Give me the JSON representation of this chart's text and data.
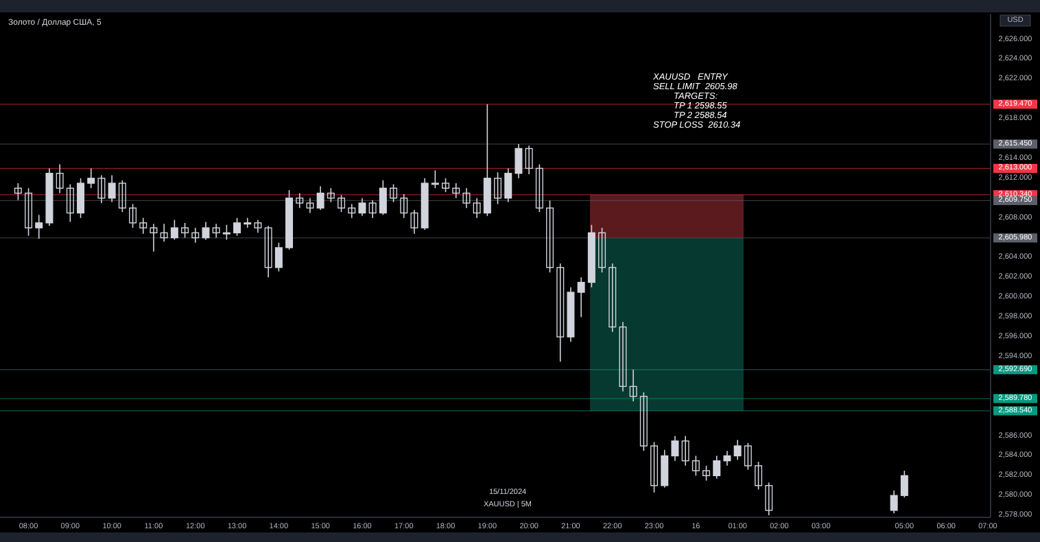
{
  "chart_data": {
    "type": "candlestick",
    "title": "Золото / Доллар США, 5",
    "ylabel": "USD",
    "color": "#d1d4dc",
    "x": [
      "2024-11-15T07:45",
      "2024-11-15T08:00",
      "2024-11-15T08:15",
      "2024-11-15T08:30",
      "2024-11-15T08:45",
      "2024-11-15T09:00",
      "2024-11-15T09:15",
      "2024-11-15T09:30",
      "2024-11-15T09:45",
      "2024-11-15T10:00",
      "2024-11-15T10:15",
      "2024-11-15T10:30",
      "2024-11-15T10:45",
      "2024-11-15T11:00",
      "2024-11-15T11:15",
      "2024-11-15T11:30",
      "2024-11-15T11:45",
      "2024-11-15T12:00",
      "2024-11-15T12:15",
      "2024-11-15T12:30",
      "2024-11-15T12:45",
      "2024-11-15T13:00",
      "2024-11-15T13:15",
      "2024-11-15T13:30",
      "2024-11-15T13:45",
      "2024-11-15T14:00",
      "2024-11-15T14:15",
      "2024-11-15T14:30",
      "2024-11-15T14:45",
      "2024-11-15T15:00",
      "2024-11-15T15:15",
      "2024-11-15T15:30",
      "2024-11-15T15:45",
      "2024-11-15T16:00",
      "2024-11-15T16:15",
      "2024-11-15T16:30",
      "2024-11-15T16:45",
      "2024-11-15T17:00",
      "2024-11-15T17:15",
      "2024-11-15T17:30",
      "2024-11-15T17:45",
      "2024-11-15T18:00",
      "2024-11-15T18:15",
      "2024-11-15T18:30",
      "2024-11-15T18:45",
      "2024-11-15T19:00",
      "2024-11-15T19:15",
      "2024-11-15T19:30",
      "2024-11-15T19:45",
      "2024-11-15T20:00",
      "2024-11-15T20:15",
      "2024-11-15T20:30",
      "2024-11-15T20:45",
      "2024-11-15T21:00",
      "2024-11-15T21:15",
      "2024-11-15T21:30",
      "2024-11-15T21:45",
      "2024-11-15T22:00",
      "2024-11-15T22:15",
      "2024-11-15T22:30",
      "2024-11-15T22:45",
      "2024-11-15T23:00",
      "2024-11-15T23:15",
      "2024-11-15T23:30",
      "2024-11-15T23:45",
      "2024-11-16T00:00",
      "2024-11-16T00:15",
      "2024-11-16T00:30",
      "2024-11-16T00:45",
      "2024-11-16T01:00",
      "2024-11-16T01:15",
      "2024-11-16T01:30",
      "2024-11-16T01:45",
      "2024-11-16T04:45",
      "2024-11-16T05:00"
    ],
    "ohlc": [
      [
        2611,
        2611.5,
        2609.8,
        2610.5
      ],
      [
        2610.5,
        2611,
        2606.2,
        2607
      ],
      [
        2607,
        2608.3,
        2605.9,
        2607.5
      ],
      [
        2607.5,
        2613,
        2607.2,
        2612.5
      ],
      [
        2612.5,
        2613.4,
        2610.5,
        2611
      ],
      [
        2611,
        2611.4,
        2607.6,
        2608.5
      ],
      [
        2608.5,
        2612,
        2608,
        2611.5
      ],
      [
        2611.5,
        2613,
        2611,
        2612
      ],
      [
        2612,
        2612.3,
        2609.5,
        2610
      ],
      [
        2610,
        2612.3,
        2609.6,
        2611.5
      ],
      [
        2611.5,
        2611.8,
        2608.6,
        2609
      ],
      [
        2609,
        2609.4,
        2607,
        2607.5
      ],
      [
        2607.5,
        2608,
        2606.4,
        2607
      ],
      [
        2607,
        2607.4,
        2604.6,
        2606.5
      ],
      [
        2606.5,
        2607.4,
        2605.6,
        2606
      ],
      [
        2606,
        2607.8,
        2605.8,
        2607
      ],
      [
        2607,
        2607.5,
        2606,
        2606.5
      ],
      [
        2606.5,
        2607,
        2605.5,
        2606
      ],
      [
        2606,
        2607.6,
        2605.8,
        2607
      ],
      [
        2607,
        2607.4,
        2606,
        2606.5
      ],
      [
        2606.5,
        2607.3,
        2605.8,
        2606.5
      ],
      [
        2606.5,
        2608,
        2606.2,
        2607.5
      ],
      [
        2607.5,
        2608,
        2607,
        2607.5
      ],
      [
        2607.5,
        2607.8,
        2606.5,
        2607
      ],
      [
        2607,
        2607.2,
        2602,
        2603
      ],
      [
        2603,
        2605.5,
        2602.6,
        2605
      ],
      [
        2605,
        2610.8,
        2604.8,
        2610
      ],
      [
        2610,
        2610.5,
        2609,
        2609.5
      ],
      [
        2609.5,
        2610,
        2608.5,
        2609
      ],
      [
        2609,
        2611.2,
        2608.8,
        2610.5
      ],
      [
        2610.5,
        2611,
        2609.6,
        2610
      ],
      [
        2610,
        2610.3,
        2608.6,
        2609
      ],
      [
        2609,
        2609.4,
        2608,
        2608.5
      ],
      [
        2608.5,
        2610,
        2608.2,
        2609.5
      ],
      [
        2609.5,
        2609.8,
        2608,
        2608.5
      ],
      [
        2608.5,
        2611.8,
        2608.3,
        2611
      ],
      [
        2611,
        2611.4,
        2609.6,
        2610
      ],
      [
        2610,
        2610.4,
        2608,
        2608.5
      ],
      [
        2608.5,
        2608.8,
        2606.4,
        2607
      ],
      [
        2607,
        2612,
        2606.8,
        2611.5
      ],
      [
        2611.5,
        2612.8,
        2611,
        2611.5
      ],
      [
        2611.5,
        2612,
        2610.6,
        2611
      ],
      [
        2611,
        2611.5,
        2610,
        2610.5
      ],
      [
        2610.5,
        2611,
        2609,
        2609.5
      ],
      [
        2609.5,
        2610,
        2608,
        2608.5
      ],
      [
        2608.5,
        2619.47,
        2608.2,
        2612
      ],
      [
        2612,
        2612.6,
        2609.4,
        2610
      ],
      [
        2610,
        2613,
        2609.6,
        2612.5
      ],
      [
        2612.5,
        2615.45,
        2612,
        2615
      ],
      [
        2615,
        2615.3,
        2612.4,
        2613
      ],
      [
        2613,
        2613.4,
        2608.6,
        2609
      ],
      [
        2609,
        2609.75,
        2602.5,
        2603
      ],
      [
        2603,
        2603.4,
        2593.5,
        2596
      ],
      [
        2596,
        2601,
        2595.5,
        2600.5
      ],
      [
        2600.5,
        2602,
        2598,
        2601.5
      ],
      [
        2601.5,
        2607.3,
        2601,
        2606.5
      ],
      [
        2606.5,
        2607,
        2602.5,
        2603
      ],
      [
        2603,
        2603.4,
        2596.5,
        2597
      ],
      [
        2597,
        2597.5,
        2590.5,
        2591
      ],
      [
        2591,
        2592.69,
        2589.5,
        2590
      ],
      [
        2590,
        2590.4,
        2584.5,
        2585
      ],
      [
        2585,
        2585.4,
        2580.3,
        2581
      ],
      [
        2581,
        2584.6,
        2580.8,
        2584
      ],
      [
        2584,
        2586,
        2583.5,
        2585.5
      ],
      [
        2585.5,
        2586,
        2583,
        2583.5
      ],
      [
        2583.5,
        2584,
        2582,
        2582.5
      ],
      [
        2582.5,
        2583,
        2581.5,
        2582
      ],
      [
        2582,
        2584,
        2581.7,
        2583.5
      ],
      [
        2583.5,
        2584.5,
        2583,
        2584
      ],
      [
        2584,
        2585.6,
        2583.6,
        2585
      ],
      [
        2585,
        2585.3,
        2582.6,
        2583
      ],
      [
        2583,
        2583.4,
        2580.6,
        2581
      ],
      [
        2581,
        2581.3,
        2578,
        2578.5
      ],
      [
        2578.5,
        2580.5,
        2578.2,
        2580
      ],
      [
        2580,
        2582.5,
        2579.8,
        2582
      ]
    ],
    "xlim": [
      "2024-11-15T07:19",
      "2024-11-16T07:04"
    ],
    "xticks": [
      {
        "value": "2024-11-15T08:00",
        "label": "08:00"
      },
      {
        "value": "2024-11-15T09:00",
        "label": "09:00"
      },
      {
        "value": "2024-11-15T10:00",
        "label": "10:00"
      },
      {
        "value": "2024-11-15T11:00",
        "label": "11:00"
      },
      {
        "value": "2024-11-15T12:00",
        "label": "12:00"
      },
      {
        "value": "2024-11-15T13:00",
        "label": "13:00"
      },
      {
        "value": "2024-11-15T14:00",
        "label": "14:00"
      },
      {
        "value": "2024-11-15T15:00",
        "label": "15:00"
      },
      {
        "value": "2024-11-15T16:00",
        "label": "16:00"
      },
      {
        "value": "2024-11-15T17:00",
        "label": "17:00"
      },
      {
        "value": "2024-11-15T18:00",
        "label": "18:00"
      },
      {
        "value": "2024-11-15T19:00",
        "label": "19:00"
      },
      {
        "value": "2024-11-15T20:00",
        "label": "20:00"
      },
      {
        "value": "2024-11-15T21:00",
        "label": "21:00"
      },
      {
        "value": "2024-11-15T22:00",
        "label": "22:00"
      },
      {
        "value": "2024-11-15T23:00",
        "label": "23:00"
      },
      {
        "value": "2024-11-16T00:00",
        "label": "16"
      },
      {
        "value": "2024-11-16T01:00",
        "label": "01:00"
      },
      {
        "value": "2024-11-16T02:00",
        "label": "02:00"
      },
      {
        "value": "2024-11-16T03:00",
        "label": "03:00"
      },
      {
        "value": "2024-11-16T05:00",
        "label": "05:00"
      },
      {
        "value": "2024-11-16T06:00",
        "label": "06:00"
      },
      {
        "value": "2024-11-16T07:00",
        "label": "07:00"
      }
    ],
    "ylim": [
      2577.8,
      2628.6
    ],
    "yticks": [
      {
        "value": 2578,
        "label": "2,578.000"
      },
      {
        "value": 2580,
        "label": "2,580.000"
      },
      {
        "value": 2582,
        "label": "2,582.000"
      },
      {
        "value": 2584,
        "label": "2,584.000"
      },
      {
        "value": 2586,
        "label": "2,586.000"
      },
      {
        "value": 2594,
        "label": "2,594.000"
      },
      {
        "value": 2596,
        "label": "2,596.000"
      },
      {
        "value": 2598,
        "label": "2,598.000"
      },
      {
        "value": 2600,
        "label": "2,600.000"
      },
      {
        "value": 2602,
        "label": "2,602.000"
      },
      {
        "value": 2604,
        "label": "2,604.000"
      },
      {
        "value": 2608,
        "label": "2,608.000"
      },
      {
        "value": 2612,
        "label": "2,612.000"
      },
      {
        "value": 2614,
        "label": "2,614.000"
      },
      {
        "value": 2618,
        "label": "2,618.000"
      },
      {
        "value": 2622,
        "label": "2,622.000"
      },
      {
        "value": 2624,
        "label": "2,624.000"
      },
      {
        "value": 2626,
        "label": "2,626.000"
      }
    ],
    "ref_lines": [
      {
        "axis": "y",
        "value": 2619.47,
        "label": "2,619.470",
        "color": "#f23645"
      },
      {
        "axis": "y",
        "value": 2615.45,
        "label": "2,615.450",
        "color": "#5d606b"
      },
      {
        "axis": "y",
        "value": 2613,
        "label": "2,613.000",
        "color": "#f23645"
      },
      {
        "axis": "y",
        "value": 2610.34,
        "label": "2,610.340",
        "color": "#f23645"
      },
      {
        "axis": "y",
        "value": 2609.75,
        "label": "2,609.750",
        "color": "#5d606b"
      },
      {
        "axis": "y",
        "value": 2605.98,
        "label": "2,605.980",
        "color": "#5d606b"
      },
      {
        "axis": "y",
        "value": 2592.69,
        "label": "2,592.690",
        "color": "#089981"
      },
      {
        "axis": "y",
        "value": 2589.78,
        "label": "2,589.780",
        "color": "#089981"
      },
      {
        "axis": "y",
        "value": 2588.54,
        "label": "2,588.540",
        "color": "#089981"
      }
    ],
    "annotations": [
      "XAUUSD   ENTRY",
      "SELL LIMIT  2605.98",
      "TARGETS:",
      "TP 1 2598.55",
      "TP 2 2588.54",
      "STOP LOSS  2610.34",
      "15/11/2024",
      "XAUUSD | 5M"
    ]
  }
}
